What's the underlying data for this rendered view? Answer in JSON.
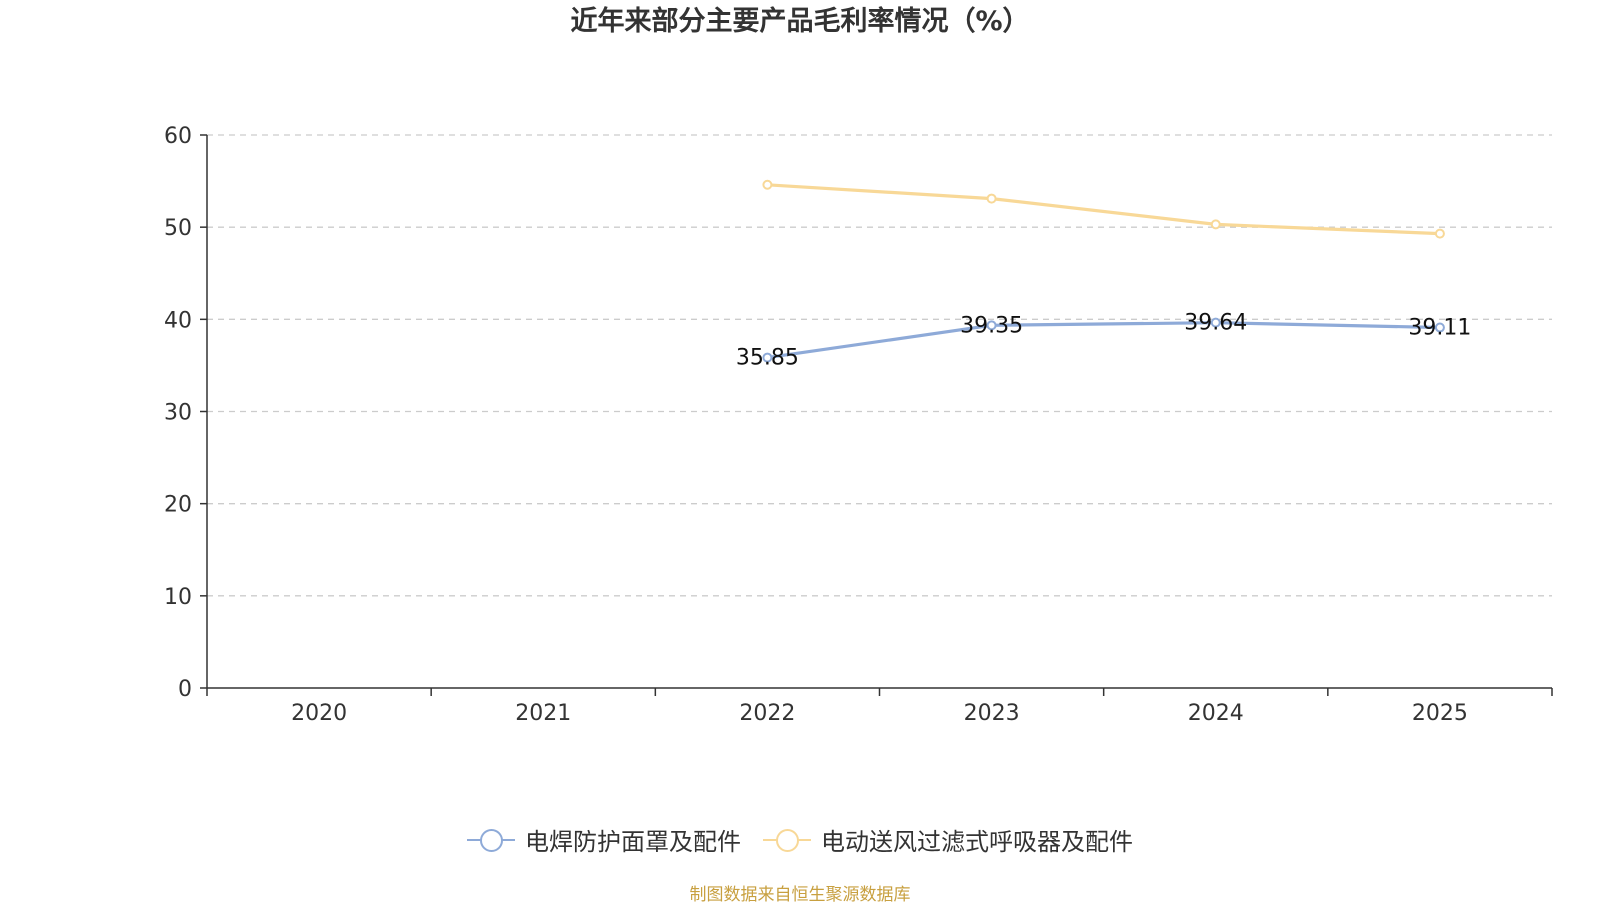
{
  "chart_data": {
    "type": "line",
    "title": "近年来部分主要产品毛利率情况（%）",
    "categories": [
      "2020",
      "2021",
      "2022",
      "2023",
      "2024",
      "2025"
    ],
    "ylim": [
      0,
      60
    ],
    "yticks": [
      0,
      10,
      20,
      30,
      40,
      50,
      60
    ],
    "grid": true,
    "legend_position": "bottom",
    "series": [
      {
        "name": "电焊防护面罩及配件",
        "color": "#8eaad8",
        "values": [
          null,
          null,
          35.85,
          39.35,
          39.64,
          39.11
        ],
        "labels": [
          null,
          null,
          "35.85",
          "39.35",
          "39.64",
          "39.11"
        ]
      },
      {
        "name": "电动送风过滤式呼吸器及配件",
        "color": "#f8d897",
        "values": [
          null,
          null,
          54.6,
          53.1,
          50.3,
          49.3
        ],
        "labels": [
          null,
          null,
          null,
          null,
          null,
          null
        ]
      }
    ],
    "source": "制图数据来自恒生聚源数据库"
  }
}
